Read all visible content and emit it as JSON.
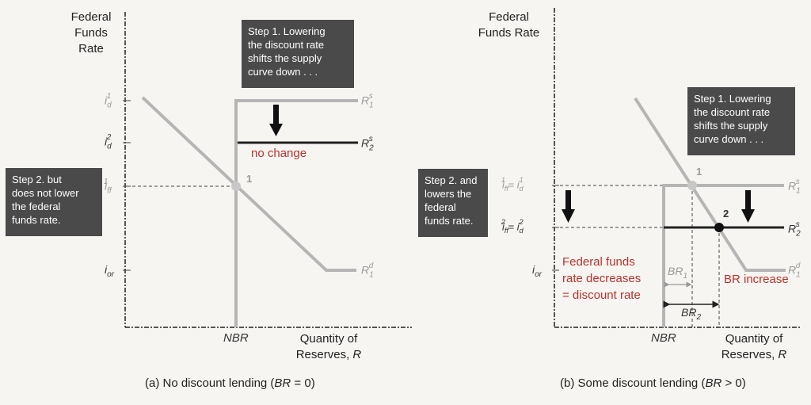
{
  "panel_a": {
    "y_axis_title": "Federal\nFunds Rate",
    "x_axis_title": "Quantity of\nReserves, R",
    "x_tick": "NBR",
    "caption": "(a) No discount lending (BR = 0)",
    "tick_id1": "i_d^1",
    "tick_id2": "i_d^2",
    "tick_iff1": "i_ff^1",
    "tick_ior": "i_or",
    "label_rs1": "R_1^s",
    "label_rs2": "R_2^s",
    "label_rd1": "R_1^d",
    "point_1": "1",
    "note_step1": "Step 1. Lowering\nthe discount rate\nshifts the supply\ncurve down . . .",
    "note_step2": "Step 2. but\ndoes not lower\nthe federal\nfunds rate.",
    "annotation": "no change"
  },
  "panel_b": {
    "y_axis_title": "Federal\nFunds Rate",
    "x_axis_title": "Quantity of\nReserves, R",
    "x_tick": "NBR",
    "caption": "(b) Some discount lending (BR > 0)",
    "tick_top": "i_ff^1 = i_d^1",
    "tick_mid": "i_ff^2 = i_d^2",
    "tick_ior": "i_or",
    "label_rs1": "R_1^s",
    "label_rs2": "R_2^s",
    "label_rd1": "R_1^d",
    "point_1": "1",
    "point_2": "2",
    "br1": "BR_1",
    "br2": "BR_2",
    "note_step1": "Step 1. Lowering\nthe discount rate\nshifts the supply\ncurve down . . .",
    "note_step2": "Step 2. and\nlowers the\nfederal\nfunds rate.",
    "annotation_left": "Federal funds\nrate decreases\n= discount rate",
    "annotation_right": "BR increase"
  },
  "colors": {
    "note_bg": "#4a4a4a",
    "red": "#b8322b",
    "gray_line": "#b5b5b5",
    "dark_line": "#222222"
  }
}
